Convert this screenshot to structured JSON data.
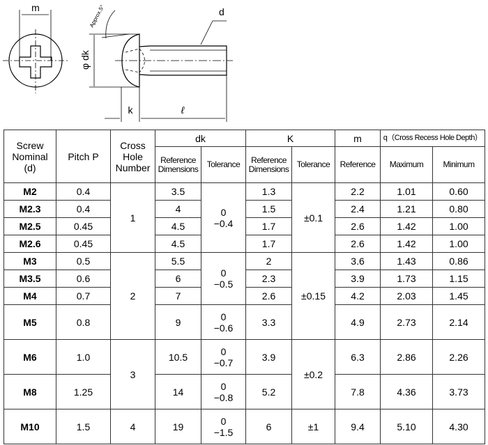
{
  "drawing": {
    "m": "m",
    "approx": "Approx.5°",
    "d": "d",
    "dk": "φ dk",
    "k": "k",
    "l": "ℓ"
  },
  "header": {
    "screw": [
      "Screw",
      "Nominal",
      "(d)"
    ],
    "pitch": "Pitch P",
    "cross": [
      "Cross",
      "Hole",
      "Number"
    ],
    "dk": "dk",
    "K": "K",
    "m": "m",
    "q": "q（Cross Recess Hole Depth）",
    "ref_dim": [
      "Reference",
      "Dimensions"
    ],
    "tolerance": "Tolerance",
    "reference": "Reference",
    "maximum": "Maximum",
    "minimum": "Minimum"
  },
  "rows": [
    {
      "d": "M2",
      "p": "0.4",
      "dk": "3.5",
      "k": "1.3",
      "m": "2.2",
      "qmax": "1.01",
      "qmin": "0.60"
    },
    {
      "d": "M2.3",
      "p": "0.4",
      "dk": "4",
      "k": "1.5",
      "m": "2.4",
      "qmax": "1.21",
      "qmin": "0.80"
    },
    {
      "d": "M2.5",
      "p": "0.45",
      "dk": "4.5",
      "k": "1.7",
      "m": "2.6",
      "qmax": "1.42",
      "qmin": "1.00"
    },
    {
      "d": "M2.6",
      "p": "0.45",
      "dk": "4.5",
      "k": "1.7",
      "m": "2.6",
      "qmax": "1.42",
      "qmin": "1.00"
    },
    {
      "d": "M3",
      "p": "0.5",
      "dk": "5.5",
      "k": "2",
      "m": "3.6",
      "qmax": "1.43",
      "qmin": "0.86"
    },
    {
      "d": "M3.5",
      "p": "0.6",
      "dk": "6",
      "k": "2.3",
      "m": "3.9",
      "qmax": "1.73",
      "qmin": "1.15"
    },
    {
      "d": "M4",
      "p": "0.7",
      "dk": "7",
      "k": "2.6",
      "m": "4.2",
      "qmax": "2.03",
      "qmin": "1.45"
    },
    {
      "d": "M5",
      "p": "0.8",
      "dk": "9",
      "k": "3.3",
      "m": "4.9",
      "qmax": "2.73",
      "qmin": "2.14"
    },
    {
      "d": "M6",
      "p": "1.0",
      "dk": "10.5",
      "k": "3.9",
      "m": "6.3",
      "qmax": "2.86",
      "qmin": "2.26"
    },
    {
      "d": "M8",
      "p": "1.25",
      "dk": "14",
      "k": "5.2",
      "m": "7.8",
      "qmax": "4.36",
      "qmin": "3.73"
    },
    {
      "d": "M10",
      "p": "1.5",
      "dk": "19",
      "k": "6",
      "m": "9.4",
      "qmax": "5.10",
      "qmin": "4.30"
    }
  ],
  "cross": [
    "1",
    "2",
    "3",
    "4"
  ],
  "dk_tol": [
    [
      "0",
      "−0.4"
    ],
    [
      "0",
      "−0.5"
    ],
    [
      "0",
      "−0.6"
    ],
    [
      "0",
      "−0.7"
    ],
    [
      "0",
      "−0.8"
    ],
    [
      "0",
      "−1.5"
    ]
  ],
  "k_tol": [
    "±0.1",
    "±0.15",
    "±0.2",
    "±1"
  ]
}
